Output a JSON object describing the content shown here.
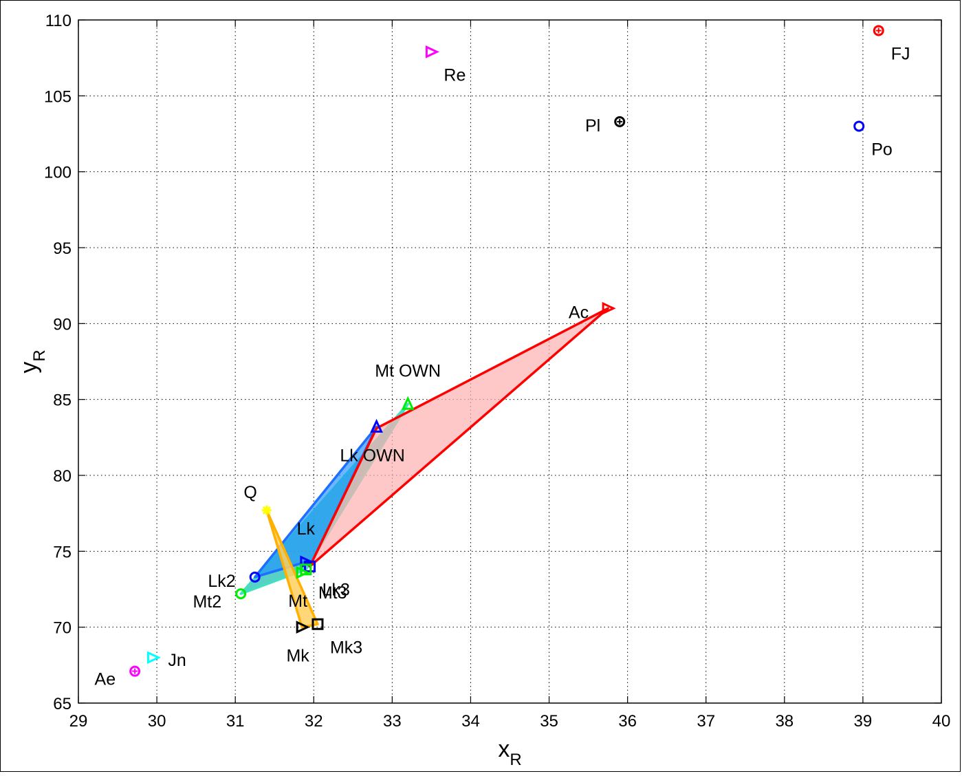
{
  "chart_data": {
    "type": "scatter",
    "xlabel": "x",
    "xlabel_sub": "R",
    "ylabel": "y",
    "ylabel_sub": "R",
    "xlim": [
      29,
      40
    ],
    "ylim": [
      65,
      110
    ],
    "xticks": [
      "29",
      "30",
      "31",
      "32",
      "33",
      "34",
      "35",
      "36",
      "37",
      "38",
      "39",
      "40"
    ],
    "yticks": [
      "65",
      "70",
      "75",
      "80",
      "85",
      "90",
      "95",
      "100",
      "105",
      "110"
    ],
    "grid": true,
    "points": [
      {
        "label": "Re",
        "x": 33.5,
        "y": 107.9,
        "marker": "triangle-right",
        "color": "#ff00ff",
        "label_pos": "below-right"
      },
      {
        "label": "FJ",
        "x": 39.2,
        "y": 109.3,
        "marker": "circle-plus",
        "color": "#ff0000",
        "label_pos": "below-right"
      },
      {
        "label": "Pl",
        "x": 35.9,
        "y": 103.3,
        "marker": "circle-plus",
        "color": "#000000",
        "label_pos": "left"
      },
      {
        "label": "Po",
        "x": 38.95,
        "y": 103.0,
        "marker": "circle",
        "color": "#0000ff",
        "label_pos": "below-right"
      },
      {
        "label": "Ac",
        "x": 35.75,
        "y": 91.0,
        "marker": "triangle-right",
        "color": "#ff0000",
        "label_pos": "left"
      },
      {
        "label": "Mt OWN",
        "x": 33.2,
        "y": 84.7,
        "marker": "triangle-up",
        "color": "#00ee00",
        "label_pos": "above"
      },
      {
        "label": "Lk OWN",
        "x": 32.8,
        "y": 83.2,
        "marker": "triangle-up",
        "color": "#0000ff",
        "label_pos": "below"
      },
      {
        "label": "Q",
        "x": 31.4,
        "y": 77.7,
        "marker": "star",
        "color": "#ffff00",
        "label_pos": "upper-left"
      },
      {
        "label": "Lk",
        "x": 31.9,
        "y": 74.3,
        "marker": "triangle-right",
        "color": "#0000ff",
        "label_pos": "above"
      },
      {
        "label": "Lk2",
        "x": 31.25,
        "y": 73.3,
        "marker": "circle",
        "color": "#0000ff",
        "label_pos": "left"
      },
      {
        "label": "Lk3",
        "x": 31.95,
        "y": 74.0,
        "marker": "square",
        "color": "#0000ff",
        "label_pos": "below-right"
      },
      {
        "label": "Mt2",
        "x": 31.07,
        "y": 72.2,
        "marker": "circle",
        "color": "#00ee00",
        "label_pos": "below-left"
      },
      {
        "label": "Mt",
        "x": 31.85,
        "y": 73.6,
        "marker": "triangle-right",
        "color": "#00ee00",
        "label_pos": "below"
      },
      {
        "label": "Mt3",
        "x": 31.9,
        "y": 73.8,
        "marker": "square",
        "color": "#00ee00",
        "label_pos": "below-right"
      },
      {
        "label": "Mk",
        "x": 31.85,
        "y": 70.0,
        "marker": "triangle-right",
        "color": "#000000",
        "label_pos": "below"
      },
      {
        "label": "Mk3",
        "x": 32.05,
        "y": 70.2,
        "marker": "square",
        "color": "#000000",
        "label_pos": "below-right"
      },
      {
        "label": "Jn",
        "x": 29.95,
        "y": 68.0,
        "marker": "triangle-right",
        "color": "#00ffff",
        "label_pos": "right"
      },
      {
        "label": "Ae",
        "x": 29.72,
        "y": 67.1,
        "marker": "circle-plus",
        "color": "#ff00ff",
        "label_pos": "below-left"
      }
    ],
    "polygons": [
      {
        "vertices": [
          [
            31.07,
            72.2
          ],
          [
            33.2,
            84.7
          ],
          [
            31.9,
            73.8
          ]
        ],
        "fill": "#2ec4b6",
        "stroke": "#40e0c0",
        "opacity": 0.8
      },
      {
        "vertices": [
          [
            31.25,
            73.3
          ],
          [
            32.8,
            83.2
          ],
          [
            31.95,
            74.0
          ],
          [
            31.9,
            74.3
          ]
        ],
        "fill": "#1e90ff",
        "stroke": "#1e6fff",
        "opacity": 0.65
      },
      {
        "vertices": [
          [
            31.95,
            74.0
          ],
          [
            32.8,
            83.1
          ],
          [
            35.75,
            91.0
          ]
        ],
        "fill": "#ffb0b0",
        "stroke": "#ff0000",
        "opacity": 0.7
      },
      {
        "vertices": [
          [
            31.4,
            77.7
          ],
          [
            31.85,
            70.0
          ],
          [
            32.05,
            70.2
          ]
        ],
        "fill": "#ffd060",
        "stroke": "#ffb000",
        "opacity": 0.85
      }
    ]
  }
}
